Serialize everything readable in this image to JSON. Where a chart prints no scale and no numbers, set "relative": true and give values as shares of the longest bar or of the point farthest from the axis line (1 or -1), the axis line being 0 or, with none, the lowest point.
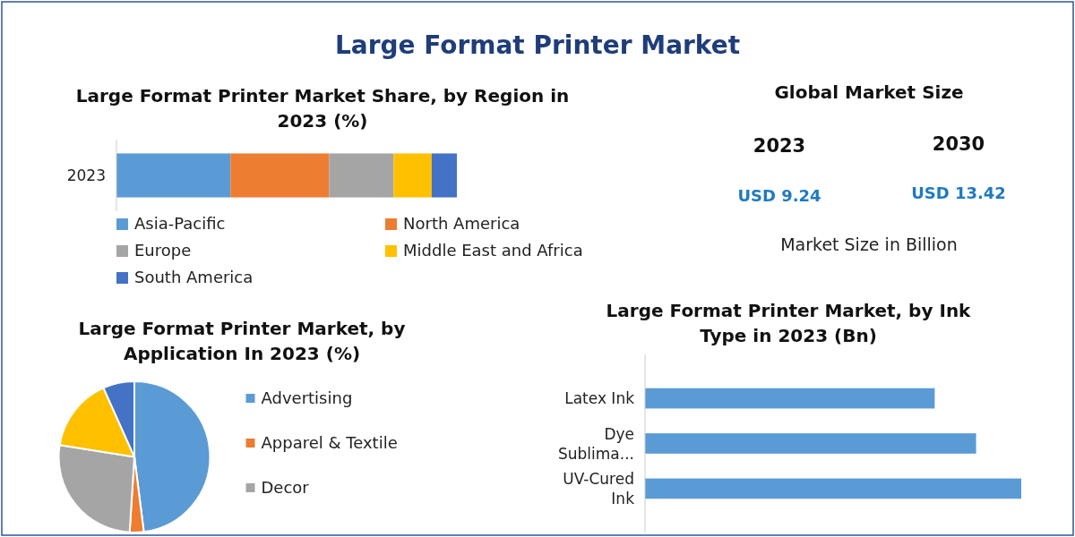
{
  "chart_data": [
    {
      "type": "other",
      "title": "Large Format Printer Market"
    },
    {
      "type": "bar",
      "title": "Large Format Printer Market Share, by Region in 2023 (%)",
      "categories": [
        "2023"
      ],
      "orientation": "horizontal",
      "stacked": true,
      "relative": true,
      "legend": "bottom",
      "series": [
        {
          "name": "Asia-Pacific",
          "color": "#5b9bd5",
          "values": [
            0.335
          ]
        },
        {
          "name": "North America",
          "color": "#ed7d31",
          "values": [
            0.29
          ]
        },
        {
          "name": "Europe",
          "color": "#a5a5a5",
          "values": [
            0.189
          ]
        },
        {
          "name": "Middle East and Africa",
          "color": "#ffc000",
          "values": [
            0.112
          ]
        },
        {
          "name": "South America",
          "color": "#4472c4",
          "values": [
            0.074
          ]
        }
      ]
    },
    {
      "type": "other",
      "title": "Global Market Size",
      "annotations": [
        "2023",
        "2030",
        "USD 9.24",
        "USD 13.42",
        "Market Size in Billion"
      ]
    },
    {
      "type": "pie",
      "title": "Large Format Printer Market, by Application In 2023 (%)",
      "categories": [
        "Advertising",
        "Apparel & Textile",
        "Decor",
        null,
        null
      ],
      "values": [
        48,
        3,
        26.5,
        15.8,
        6.7
      ],
      "colors": [
        "#5b9bd5",
        "#ed7d31",
        "#a5a5a5",
        "#ffc000",
        "#4472c4"
      ],
      "legend": "right"
    },
    {
      "type": "bar",
      "title": "Large Format Printer Market, by Ink Type in 2023 (Bn)",
      "categories": [
        "Latex Ink",
        "Dye Sublima...",
        "UV-Cured Ink"
      ],
      "orientation": "horizontal",
      "relative": true,
      "values": [
        0.77,
        0.88,
        1
      ],
      "color": "#5b9bd5"
    }
  ]
}
